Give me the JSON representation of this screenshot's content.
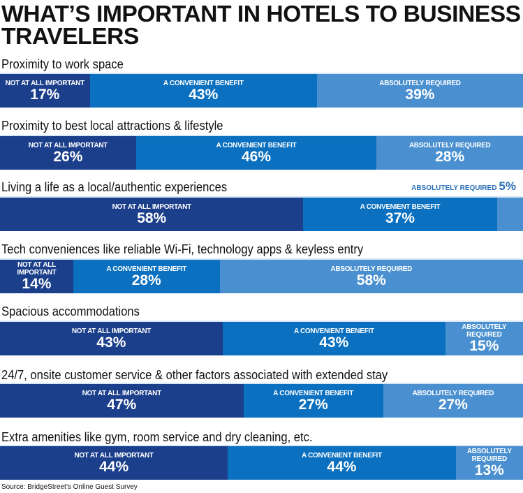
{
  "chart_data": {
    "type": "bar",
    "orientation": "horizontal",
    "stacked": true,
    "title": "WHAT’S IMPORTANT IN HOTELS TO BUSINESS TRAVELERS",
    "series_names": [
      "NOT AT ALL IMPORTANT",
      "A CONVENIENT BENEFIT",
      "ABSOLUTELY REQUIRED"
    ],
    "colors": [
      "#1b3f8b",
      "#0b70bf",
      "#4a90d0"
    ],
    "unit": "%",
    "categories": [
      "Proximity to work space",
      "Proximity to best local attractions & lifestyle",
      "Living a life as a local/authentic experiences",
      "Tech conveniences like reliable Wi-Fi, technology apps & keyless entry",
      "Spacious accommodations",
      "24/7, onsite customer service & other factors associated with extended stay",
      "Extra amenities like gym, room service and dry cleaning, etc."
    ],
    "values": [
      [
        17,
        43,
        39
      ],
      [
        26,
        46,
        28
      ],
      [
        58,
        37,
        5
      ],
      [
        14,
        28,
        58
      ],
      [
        43,
        43,
        15
      ],
      [
        47,
        27,
        27
      ],
      [
        44,
        44,
        13
      ]
    ],
    "source": "Source: BridgeStreet’s Online Guest Survey"
  }
}
